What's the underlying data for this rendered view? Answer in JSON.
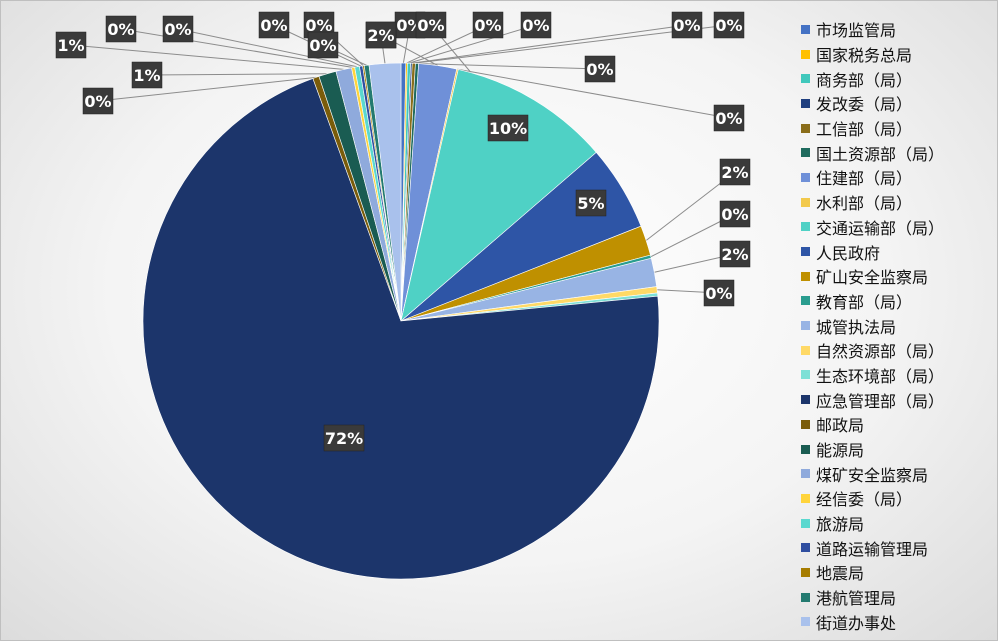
{
  "chart_data": {
    "type": "pie",
    "title": "",
    "legend_position": "right",
    "categories": [
      "市场监管局",
      "国家税务总局",
      "商务部（局）",
      "发改委（局）",
      "工信部（局）",
      "国土资源部（局）",
      "住建部（局）",
      "水利部（局）",
      "交通运输部（局）",
      "人民政府",
      "矿山安全监察局",
      "教育部（局）",
      "城管执法局",
      "自然资源部（局）",
      "生态环境部（局）",
      "应急管理部（局）",
      "邮政局",
      "能源局",
      "煤矿安全监察局",
      "经信委（局）",
      "旅游局",
      "道路运输管理局",
      "地震局",
      "港航管理局",
      "街道办事处"
    ],
    "values": [
      0.3,
      0.1,
      0.2,
      0.1,
      0.2,
      0.2,
      2.4,
      0.1,
      10.2,
      5.4,
      1.9,
      0.2,
      1.8,
      0.4,
      0.2,
      71.7,
      0.4,
      1.1,
      1.0,
      0.2,
      0.3,
      0.2,
      0.1,
      0.3,
      2.0
    ],
    "labels": [
      "0%",
      "0%",
      "0%",
      "0%",
      "0%",
      "0%",
      "2%",
      "0%",
      "10%",
      "5%",
      "2%",
      "0%",
      "2%",
      "0%",
      "0%",
      "72%",
      "0%",
      "1%",
      "1%",
      "0%",
      "0%",
      "0%",
      "0%",
      "0%",
      "2%"
    ],
    "colors": [
      "#4472c4",
      "#ffc000",
      "#40c8bc",
      "#1f3f7f",
      "#8a6d1a",
      "#1f6b5e",
      "#6f90d8",
      "#f2c94c",
      "#4fd1c5",
      "#2e55a6",
      "#bf9000",
      "#2a9d8f",
      "#98b4e4",
      "#ffd966",
      "#7ee0d6",
      "#1c356b",
      "#7a5c0a",
      "#1a5c52",
      "#8faadc",
      "#ffd43b",
      "#5ad8cf",
      "#2f4ea0",
      "#a67c00",
      "#237a70",
      "#a9c1ec"
    ]
  }
}
